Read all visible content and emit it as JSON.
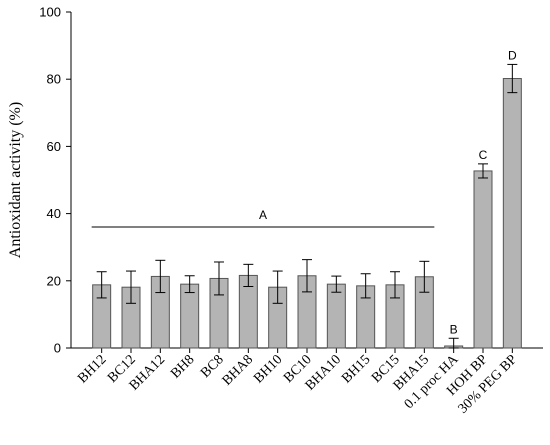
{
  "chart_data": {
    "type": "bar",
    "ylabel": "Antioxidant activity (%)",
    "xlabel": "",
    "ylim": [
      0,
      100
    ],
    "yticks": [
      0,
      20,
      40,
      60,
      80,
      100
    ],
    "categories": [
      "BH12",
      "BC12",
      "BHA12",
      "BH8",
      "BC8",
      "BHA8",
      "BH10",
      "BC10",
      "BHA10",
      "BH15",
      "BC15",
      "BHA15",
      "0.1 proc HA",
      "HOH BP",
      "30% PEG BP"
    ],
    "values": [
      18.8,
      18.1,
      21.3,
      19.0,
      20.7,
      21.6,
      18.1,
      21.5,
      19.0,
      18.5,
      18.8,
      21.2,
      0.6,
      52.7,
      80.2
    ],
    "errors": [
      3.9,
      4.8,
      4.8,
      2.5,
      4.9,
      3.3,
      4.8,
      4.8,
      2.4,
      3.6,
      3.9,
      4.6,
      2.3,
      2.1,
      4.2
    ],
    "grid": false,
    "annotations": [
      {
        "text": "A",
        "from_category": 0,
        "to_category": 11,
        "y": 36
      },
      {
        "text": "B",
        "category": 12
      },
      {
        "text": "C",
        "category": 13
      },
      {
        "text": "D",
        "category": 14
      }
    ],
    "bar_color": "#b4b4b4"
  }
}
